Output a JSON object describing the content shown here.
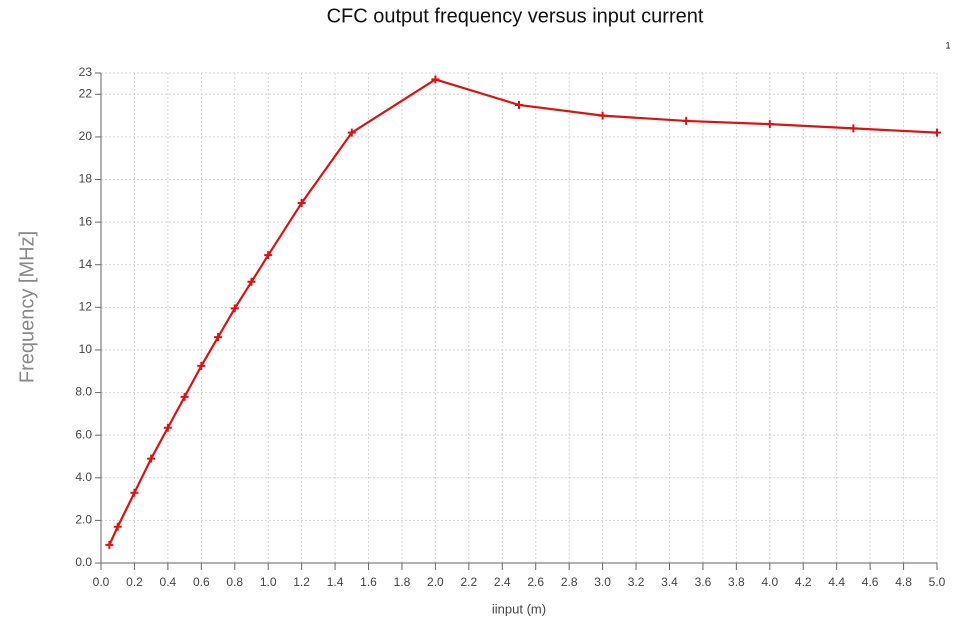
{
  "chart_data": {
    "type": "line",
    "title": "CFC output frequency versus input current",
    "annotation": "1",
    "x_label": "iinput (m)",
    "y_label": "Frequency [MHz]",
    "x": [
      0.05,
      0.1,
      0.2,
      0.3,
      0.4,
      0.5,
      0.6,
      0.7,
      0.8,
      0.9,
      1.0,
      1.2,
      1.5,
      2.0,
      2.5,
      3.0,
      3.5,
      4.0,
      4.5,
      5.0
    ],
    "series": [
      {
        "name": "Frequency",
        "color": "#e01010",
        "values": [
          0.85,
          1.7,
          3.3,
          4.9,
          6.35,
          7.8,
          9.25,
          10.6,
          11.95,
          13.2,
          14.45,
          16.9,
          20.2,
          22.7,
          21.5,
          21.0,
          20.75,
          20.6,
          20.4,
          20.2
        ]
      }
    ],
    "xlim": [
      0,
      5
    ],
    "ylim": [
      0,
      23
    ],
    "xticks": [
      {
        "value": 0,
        "label": "0.0"
      },
      0.2,
      0.4,
      0.6,
      0.8,
      {
        "value": 1,
        "label": "1.0"
      },
      1.2,
      1.4,
      1.6,
      1.8,
      {
        "value": 2,
        "label": "2.0"
      },
      2.2,
      2.4,
      2.6,
      2.8,
      {
        "value": 3,
        "label": "3.0"
      },
      3.2,
      3.4,
      3.6,
      3.8,
      {
        "value": 4,
        "label": "4.0"
      },
      4.2,
      4.4,
      4.6,
      4.8,
      {
        "value": 5,
        "label": "5.0"
      }
    ],
    "yticks": [
      {
        "value": 0,
        "label": "0.0"
      },
      {
        "value": 2,
        "label": "2.0"
      },
      {
        "value": 4,
        "label": "4.0"
      },
      {
        "value": 6,
        "label": "6.0"
      },
      {
        "value": 8,
        "label": "8.0"
      },
      10,
      12,
      14,
      16,
      18,
      20,
      22,
      23
    ],
    "grid": true
  }
}
